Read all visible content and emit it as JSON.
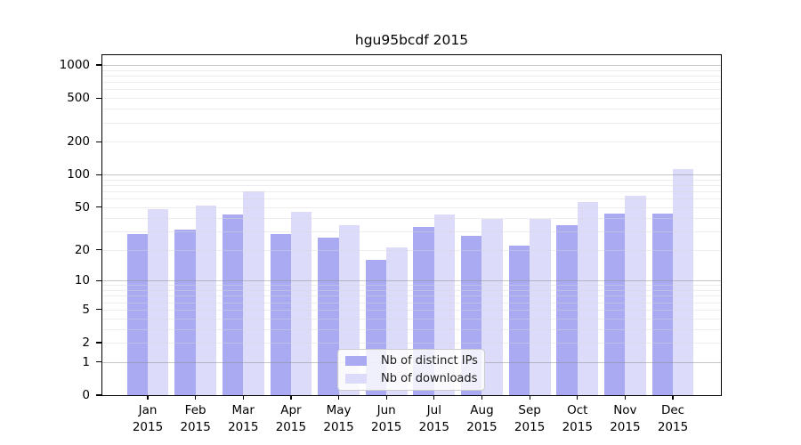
{
  "chart_data": {
    "type": "bar",
    "title": "hgu95bcdf 2015",
    "categories": [
      "Jan",
      "Feb",
      "Mar",
      "Apr",
      "May",
      "Jun",
      "Jul",
      "Aug",
      "Sep",
      "Oct",
      "Nov",
      "Dec"
    ],
    "category_year": "2015",
    "series": [
      {
        "name": "Nb of distinct IPs",
        "color": "#aaaaf2",
        "values": [
          28,
          31,
          43,
          28,
          26,
          16,
          33,
          27,
          22,
          34,
          44,
          44
        ]
      },
      {
        "name": "Nb of downloads",
        "color": "#dcdcfa",
        "values": [
          48,
          52,
          70,
          45,
          34,
          21,
          43,
          39,
          39,
          56,
          64,
          113
        ]
      }
    ],
    "xlabel": "",
    "ylabel": "",
    "yscale": "log1p",
    "yticks": [
      0,
      1,
      2,
      5,
      10,
      20,
      50,
      100,
      200,
      500,
      1000
    ],
    "ylim": [
      0,
      1230
    ],
    "grid": "horizontal, drawn over bars; major lines at 1,10,100,1000, minor at 2-9 per decade",
    "legend_position": "lower center inside plot",
    "background_color": "#ffffff",
    "axis_color": "#000000"
  }
}
